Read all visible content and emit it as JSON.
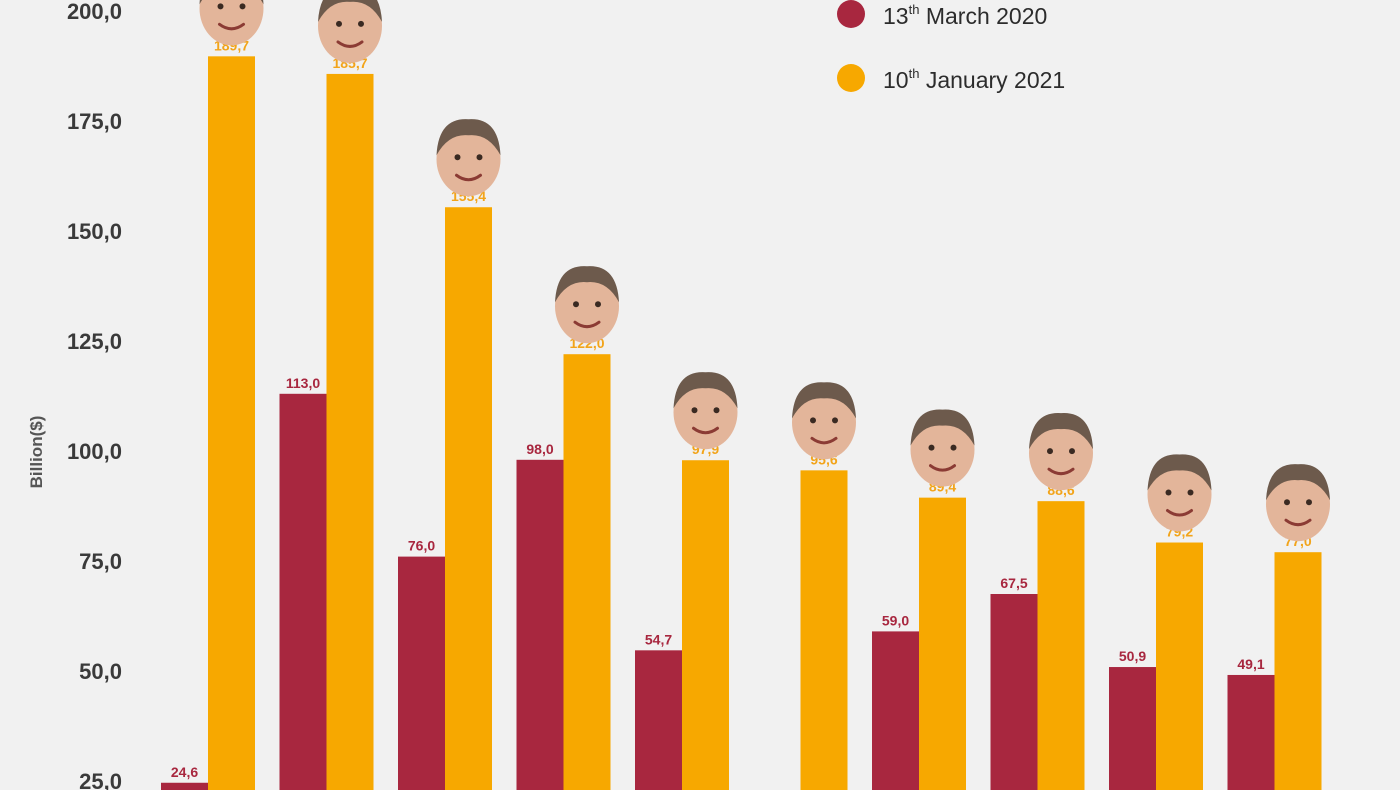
{
  "chart_data": {
    "type": "bar",
    "ylabel": "Billion($)",
    "ylim": [
      18,
      218
    ],
    "yticks": [
      "25,0",
      "50,0",
      "75,0",
      "100,0",
      "125,0",
      "150,0",
      "175,0",
      "200,0"
    ],
    "tick_values": [
      25,
      50,
      75,
      100,
      125,
      150,
      175,
      200
    ],
    "legend_position": "top-right",
    "legend": [
      {
        "name_pre": "13",
        "name_sup": "th",
        "name_post": " March 2020",
        "color": "#a8273f"
      },
      {
        "name_pre": "10",
        "name_sup": "th",
        "name_post": " January 2021",
        "color": "#f7a800"
      }
    ],
    "series": [
      {
        "values": [
          24.6,
          113.0,
          76.0,
          98.0,
          54.7,
          null,
          59.0,
          67.5,
          50.9,
          49.1
        ],
        "labels": [
          "24,6",
          "113,0",
          "76,0",
          "98,0",
          "54,7",
          "",
          "59,0",
          "67,5",
          "50,9",
          "49,1"
        ]
      },
      {
        "values": [
          189.7,
          185.7,
          155.4,
          122.0,
          97.9,
          95.6,
          89.4,
          88.6,
          79.2,
          77.0
        ],
        "labels": [
          "189,7",
          "185,7",
          "155,4",
          "122,0",
          "97,9",
          "95,6",
          "89,4",
          "88,6",
          "79,2",
          "77,0"
        ]
      }
    ],
    "category_icons": [
      "face-icon",
      "face-icon",
      "face-icon",
      "face-icon",
      "face-icon",
      "face-icon",
      "face-icon",
      "face-icon",
      "face-icon",
      "face-icon"
    ],
    "colors": {
      "march": "#a8273f",
      "january": "#f7a800",
      "background": "#f1f1f1"
    }
  }
}
